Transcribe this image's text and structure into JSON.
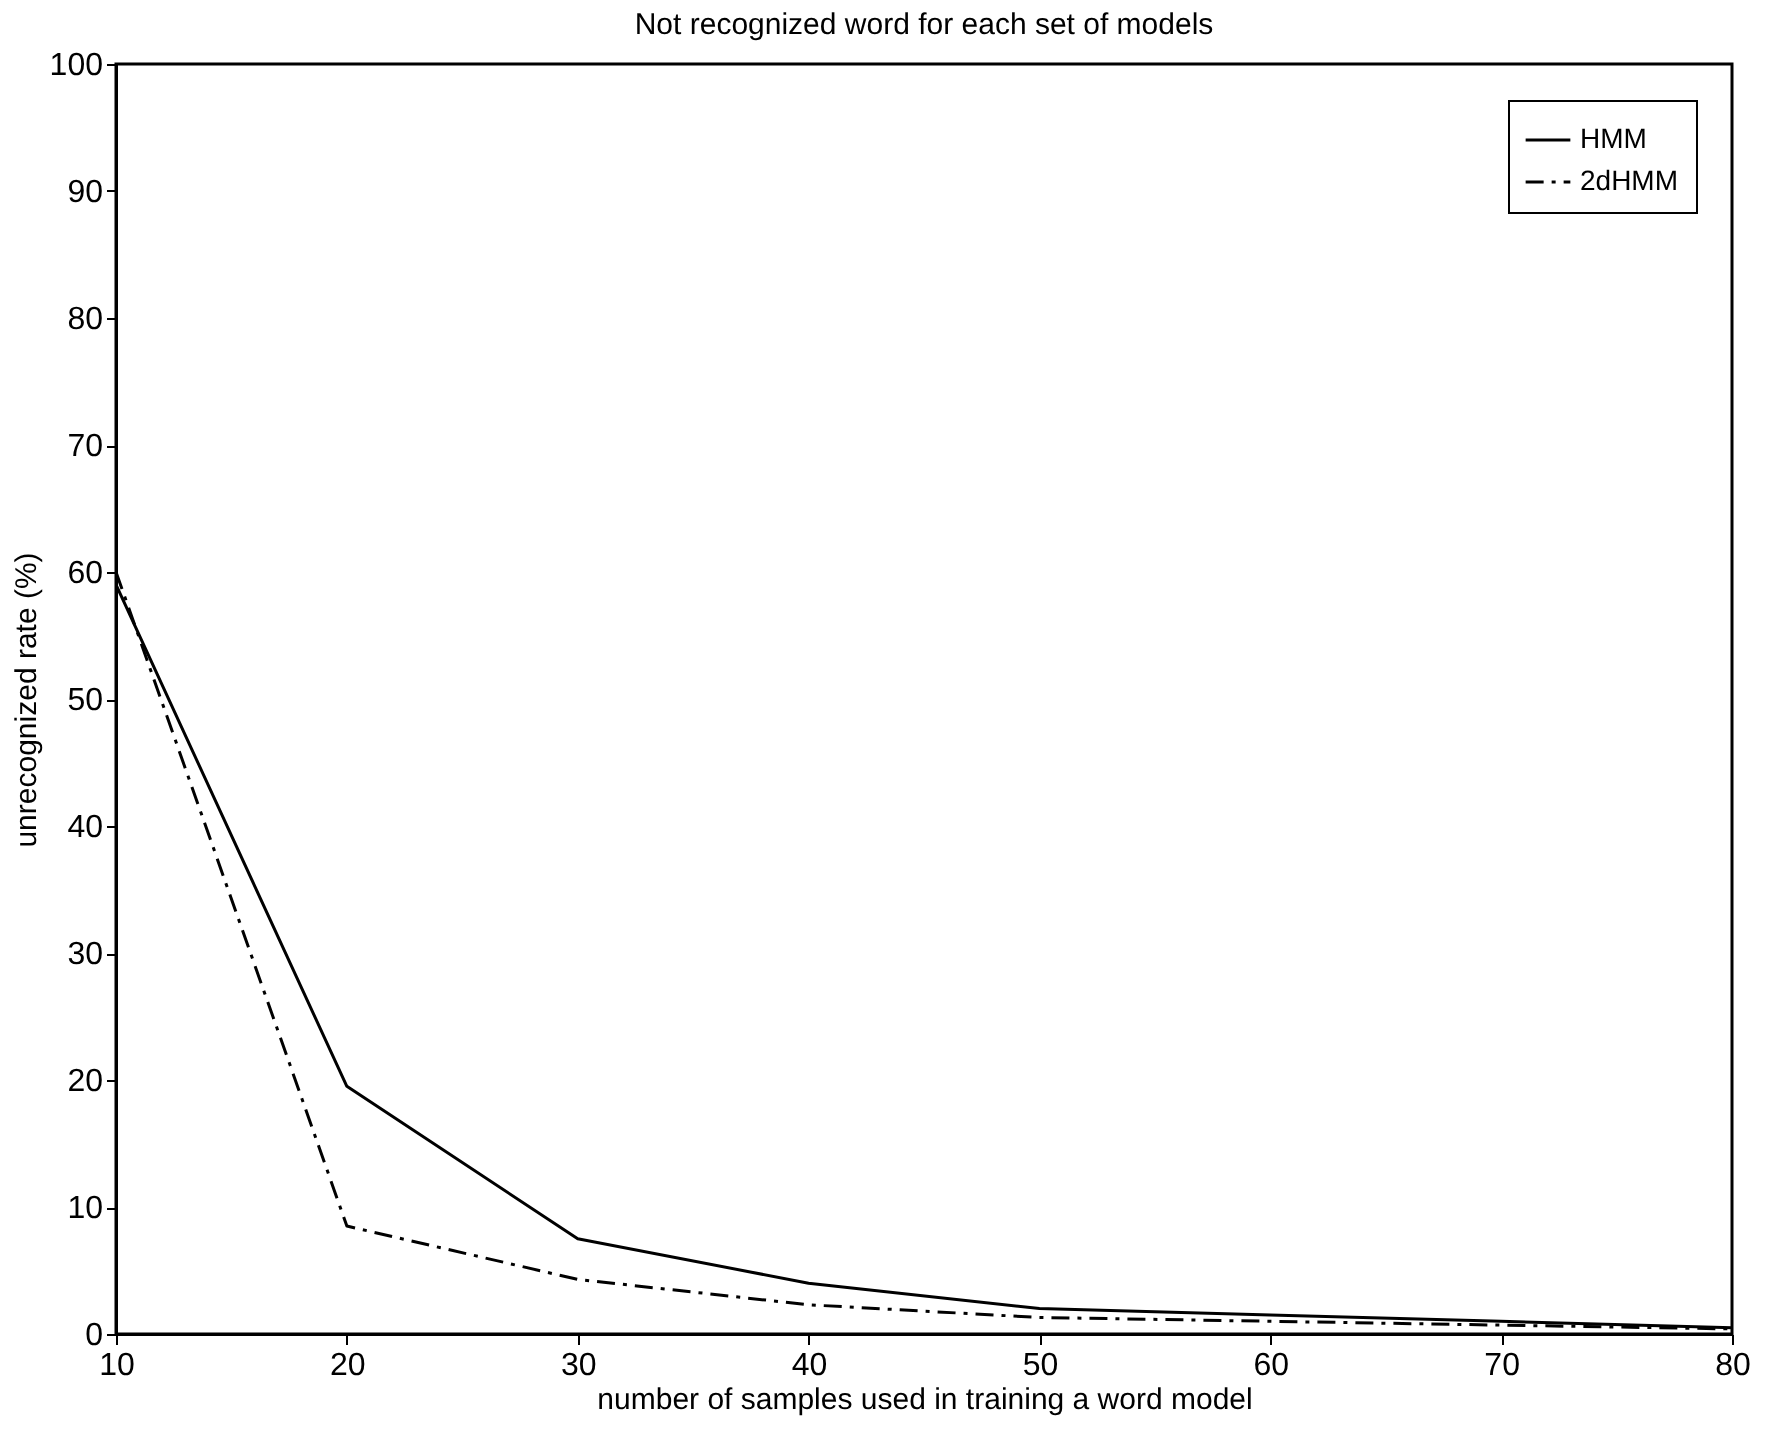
{
  "chart_data": {
    "type": "line",
    "title": "Not recognized word for each set of models",
    "xlabel": "number of samples used in training a word model",
    "ylabel": "unrecognized rate (%)",
    "x": [
      10,
      20,
      30,
      40,
      50,
      60,
      70,
      80
    ],
    "series": [
      {
        "name": "HMM",
        "color": "#000000",
        "line_style": "solid",
        "values": [
          59,
          19.5,
          7.5,
          4,
          2,
          1.5,
          1,
          0.5
        ]
      },
      {
        "name": "2dHMM",
        "color": "#000000",
        "line_style": "dashdot",
        "values": [
          60,
          8.5,
          4.3,
          2.3,
          1.3,
          1,
          0.7,
          0.4
        ]
      }
    ],
    "xlim": [
      10,
      80
    ],
    "xticks": [
      10,
      20,
      30,
      40,
      50,
      60,
      70,
      80
    ],
    "ylim": [
      0,
      100
    ],
    "yticks": [
      0,
      10,
      20,
      30,
      40,
      50,
      60,
      70,
      80,
      90,
      100
    ],
    "grid": false,
    "legend": "top right",
    "marker": "none"
  }
}
